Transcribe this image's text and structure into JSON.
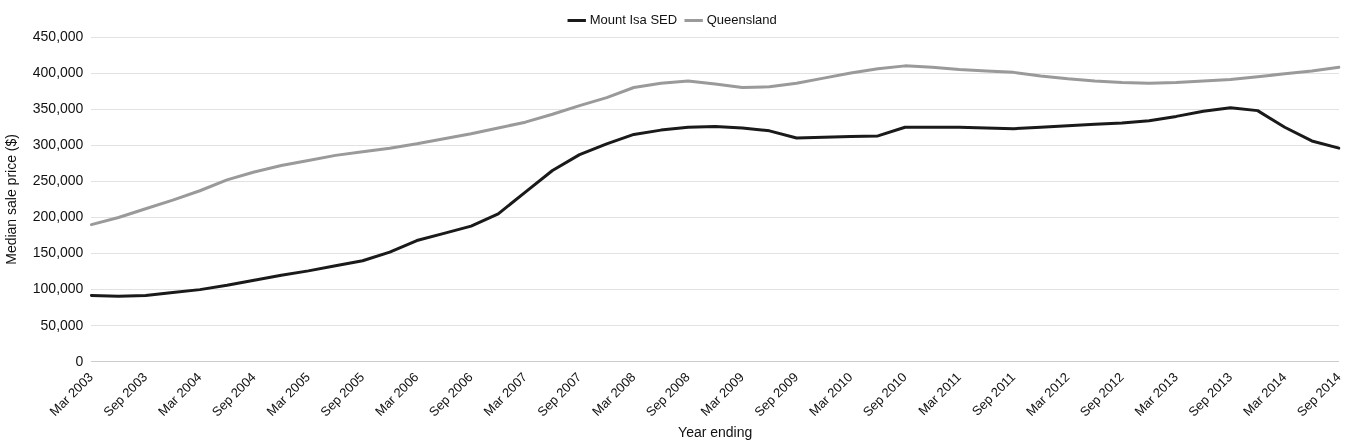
{
  "chart_data": {
    "type": "line",
    "xlabel": "Year ending",
    "ylabel": "Median sale price ($)",
    "categories": [
      "Mar 2003",
      null,
      "Sep 2003",
      null,
      "Mar 2004",
      null,
      "Sep 2004",
      null,
      "Mar 2005",
      null,
      "Sep 2005",
      null,
      "Mar 2006",
      null,
      "Sep 2006",
      null,
      "Mar 2007",
      null,
      "Sep 2007",
      null,
      "Mar 2008",
      null,
      "Sep 2008",
      null,
      "Mar 2009",
      null,
      "Sep 2009",
      null,
      "Mar 2010",
      null,
      "Sep 2010",
      null,
      "Mar 2011",
      null,
      "Sep 2011",
      null,
      "Mar 2012",
      null,
      "Sep 2012",
      null,
      "Mar 2013",
      null,
      "Sep 2013",
      null,
      "Mar 2014",
      null,
      "Sep 2014"
    ],
    "series": [
      {
        "name": "Mount Isa SED",
        "color": "#1a1a1a",
        "values": [
          92000,
          91000,
          92000,
          96000,
          100000,
          106000,
          113000,
          120000,
          126000,
          133000,
          140000,
          152000,
          168000,
          178000,
          188000,
          205000,
          235000,
          265000,
          287000,
          302000,
          315000,
          321000,
          325000,
          326000,
          324000,
          320000,
          310000,
          311000,
          312000,
          313000,
          325000,
          325000,
          325000,
          324000,
          323000,
          325000,
          327000,
          329000,
          331000,
          334000,
          340000,
          347000,
          352000,
          348000,
          325000,
          306000,
          296000
        ]
      },
      {
        "name": "Queensland",
        "color": "#9a9a9a",
        "values": [
          190000,
          200000,
          212000,
          224000,
          237000,
          252000,
          263000,
          272000,
          279000,
          286000,
          291000,
          296000,
          302000,
          309000,
          316000,
          324000,
          332000,
          343000,
          355000,
          366000,
          380000,
          386000,
          389000,
          385000,
          380000,
          381000,
          386000,
          393000,
          400000,
          406000,
          410000,
          408000,
          405000,
          403000,
          401000,
          396000,
          392000,
          389000,
          387000,
          386000,
          387000,
          389000,
          391000,
          395000,
          399000,
          403000,
          408000
        ]
      }
    ],
    "ylim": [
      0,
      450000
    ],
    "yticks": [
      0,
      {
        "value": 50000,
        "label": "50,000"
      },
      {
        "value": 100000,
        "label": "100,000"
      },
      {
        "value": 150000,
        "label": "150,000"
      },
      {
        "value": 200000,
        "label": "200,000"
      },
      {
        "value": 250000,
        "label": "250,000"
      },
      {
        "value": 300000,
        "label": "300,000"
      },
      {
        "value": 350000,
        "label": "350,000"
      },
      {
        "value": 400000,
        "label": "400,000"
      },
      {
        "value": 450000,
        "label": "450,000"
      }
    ],
    "grid": "y",
    "legend": "top",
    "marker": "none",
    "line_style": "solid"
  }
}
